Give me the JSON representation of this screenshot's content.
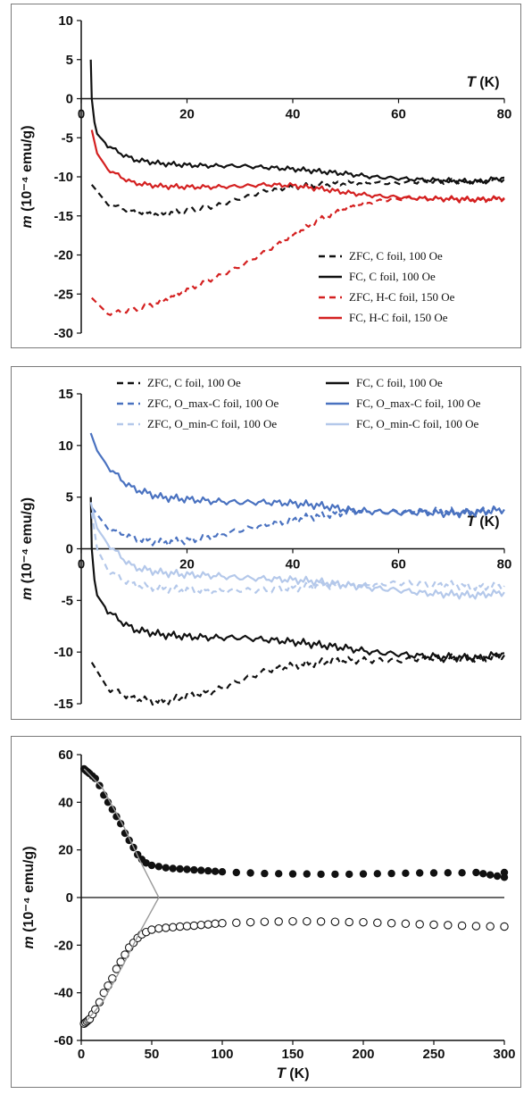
{
  "chart_data": [
    {
      "type": "line",
      "panel": "top",
      "xlabel_symbol": "T",
      "xlabel_unit": "(K)",
      "ylabel_symbol": "m",
      "ylabel_unit": "(10⁻⁴ emu/g)",
      "xlim": [
        0,
        80
      ],
      "ylim": [
        -30,
        10
      ],
      "xticks": [
        "0",
        "20",
        "40",
        "60",
        "80"
      ],
      "yticks": [
        "10",
        "5",
        "0",
        "-5",
        "-10",
        "-15",
        "-20",
        "-25",
        "-30"
      ],
      "grid": false,
      "legend": "lower-right",
      "series": [
        {
          "name": "ZFC, C foil, 100 Oe",
          "color": "#111111",
          "dash": true,
          "x": [
            2,
            5,
            10,
            15,
            20,
            25,
            30,
            35,
            40,
            45,
            50,
            55,
            60,
            65,
            70,
            75,
            80
          ],
          "y": [
            -11,
            -13.5,
            -14.5,
            -14.8,
            -14.3,
            -13.8,
            -12.8,
            -11.8,
            -11.3,
            -11,
            -10.8,
            -10.8,
            -10.8,
            -10.6,
            -10.6,
            -10.7,
            -10.3
          ]
        },
        {
          "name": "FC, C foil, 100 Oe",
          "color": "#111111",
          "dash": false,
          "x": [
            1.8,
            2,
            2.5,
            3,
            5,
            8,
            10,
            15,
            20,
            25,
            30,
            35,
            40,
            45,
            50,
            55,
            60,
            65,
            70,
            75,
            80
          ],
          "y": [
            5,
            0,
            -3,
            -4.5,
            -6,
            -7.2,
            -7.8,
            -8.3,
            -8.5,
            -8.6,
            -8.6,
            -8.8,
            -9,
            -9.3,
            -9.6,
            -10,
            -10.2,
            -10.4,
            -10.5,
            -10.6,
            -10.1
          ]
        },
        {
          "name": "ZFC, H-C foil, 150 Oe",
          "color": "#d42020",
          "dash": true,
          "x": [
            2,
            5,
            10,
            15,
            20,
            25,
            30,
            35,
            40,
            45,
            50,
            55,
            60,
            65,
            70,
            75,
            80
          ],
          "y": [
            -25.5,
            -27.5,
            -27,
            -26,
            -24.5,
            -23,
            -21.5,
            -19.5,
            -17.5,
            -15.5,
            -14,
            -13.2,
            -12.8,
            -12.7,
            -12.9,
            -13,
            -12.8
          ]
        },
        {
          "name": "FC, H-C foil, 150 Oe",
          "color": "#d42020",
          "dash": false,
          "x": [
            2,
            3,
            5,
            8,
            10,
            15,
            20,
            25,
            30,
            35,
            40,
            45,
            50,
            55,
            60,
            65,
            70,
            75,
            80
          ],
          "y": [
            -4,
            -7,
            -9,
            -10.2,
            -10.8,
            -11.2,
            -11.3,
            -11.3,
            -11.2,
            -11,
            -11.1,
            -11.5,
            -12,
            -12.4,
            -12.6,
            -12.8,
            -12.8,
            -12.9,
            -12.7
          ]
        }
      ]
    },
    {
      "type": "line",
      "panel": "middle",
      "xlabel_symbol": "T",
      "xlabel_unit": "(K)",
      "ylabel_symbol": "m",
      "ylabel_unit": "(10⁻⁴ emu/g)",
      "xlim": [
        0,
        80
      ],
      "ylim": [
        -15,
        15
      ],
      "xticks": [
        "0",
        "20",
        "40",
        "60",
        "80"
      ],
      "yticks": [
        "15",
        "10",
        "5",
        "0",
        "-5",
        "-10",
        "-15"
      ],
      "grid": false,
      "legend": "top",
      "series": [
        {
          "name": "ZFC, C foil, 100 Oe",
          "color": "#111111",
          "dash": true,
          "x": [
            2,
            5,
            10,
            15,
            20,
            25,
            30,
            35,
            40,
            45,
            50,
            55,
            60,
            65,
            70,
            75,
            80
          ],
          "y": [
            -11,
            -13.5,
            -14.5,
            -14.8,
            -14.3,
            -13.8,
            -12.8,
            -11.8,
            -11.3,
            -11,
            -10.8,
            -10.8,
            -10.8,
            -10.6,
            -10.6,
            -10.7,
            -10.3
          ]
        },
        {
          "name": "FC, C foil, 100 Oe",
          "color": "#111111",
          "dash": false,
          "x": [
            1.8,
            2,
            2.5,
            3,
            5,
            8,
            10,
            15,
            20,
            25,
            30,
            35,
            40,
            45,
            50,
            55,
            60,
            65,
            70,
            75,
            80
          ],
          "y": [
            5,
            0,
            -3,
            -4.5,
            -6,
            -7.2,
            -7.8,
            -8.3,
            -8.5,
            -8.6,
            -8.6,
            -8.8,
            -9,
            -9.3,
            -9.6,
            -10,
            -10.2,
            -10.4,
            -10.5,
            -10.6,
            -10.1
          ]
        },
        {
          "name": "ZFC, O_max-C foil, 100 Oe",
          "color": "#4a72c0",
          "dash": true,
          "x": [
            2,
            5,
            10,
            15,
            20,
            25,
            30,
            35,
            40,
            45,
            50,
            55,
            60,
            65,
            70,
            75,
            80
          ],
          "y": [
            4,
            2,
            1,
            0.6,
            0.8,
            1.2,
            1.8,
            2.3,
            2.8,
            3.2,
            3.5,
            3.6,
            3.6,
            3.7,
            3.6,
            3.7,
            3.8
          ]
        },
        {
          "name": "FC, O_max-C foil, 100 Oe",
          "color": "#4a72c0",
          "dash": false,
          "x": [
            1.8,
            3,
            5,
            8,
            10,
            15,
            20,
            25,
            30,
            35,
            40,
            45,
            50,
            55,
            60,
            65,
            70,
            75,
            80
          ],
          "y": [
            11.2,
            9.5,
            8,
            6.5,
            5.8,
            5,
            4.8,
            4.6,
            4.5,
            4.5,
            4.4,
            4.2,
            3.8,
            3.6,
            3.5,
            3.5,
            3.4,
            3.5,
            3.8
          ]
        },
        {
          "name": "ZFC, O_min-C foil, 100 Oe",
          "color": "#b4c8ea",
          "dash": true,
          "x": [
            2,
            3,
            5,
            8,
            10,
            15,
            20,
            25,
            30,
            35,
            40,
            45,
            50,
            55,
            60,
            65,
            70,
            75,
            80
          ],
          "y": [
            3.5,
            0,
            -2,
            -3,
            -3.5,
            -3.8,
            -4,
            -4.1,
            -4,
            -4,
            -3.8,
            -3.6,
            -3.5,
            -3.5,
            -3.3,
            -3.4,
            -3.5,
            -3.7,
            -3.6
          ]
        },
        {
          "name": "FC, O_min-C foil, 100 Oe",
          "color": "#b4c8ea",
          "dash": false,
          "x": [
            1.8,
            3,
            5,
            8,
            10,
            15,
            20,
            25,
            30,
            35,
            40,
            45,
            50,
            55,
            60,
            65,
            70,
            75,
            80
          ],
          "y": [
            4.5,
            2,
            0.5,
            -1,
            -1.8,
            -2.3,
            -2.5,
            -2.6,
            -2.8,
            -2.9,
            -3,
            -3.2,
            -3.5,
            -3.8,
            -4,
            -4.3,
            -4.4,
            -4.5,
            -4.2
          ]
        }
      ]
    },
    {
      "type": "scatter",
      "panel": "bottom",
      "xlabel_symbol": "T",
      "xlabel_unit": "(K)",
      "ylabel_symbol": "m",
      "ylabel_unit": "(10⁻⁴ emu/g)",
      "xlim": [
        0,
        300
      ],
      "ylim": [
        -60,
        60
      ],
      "xticks": [
        "0",
        "50",
        "100",
        "150",
        "200",
        "250",
        "300"
      ],
      "yticks": [
        "60",
        "40",
        "20",
        "0",
        "-20",
        "-40",
        "-60"
      ],
      "grid": false,
      "series": [
        {
          "name": "",
          "marker": "filled",
          "color": "#111111",
          "x": [
            2,
            3,
            4,
            5,
            6,
            8,
            10,
            13,
            16,
            19,
            22,
            25,
            28,
            31,
            34,
            37,
            40,
            43,
            46,
            50,
            55,
            60,
            65,
            70,
            75,
            80,
            85,
            90,
            95,
            100,
            110,
            120,
            130,
            140,
            150,
            160,
            170,
            180,
            190,
            200,
            210,
            220,
            230,
            240,
            250,
            260,
            270,
            280,
            285,
            290,
            295,
            300,
            300
          ],
          "y": [
            54,
            53.5,
            53,
            52.5,
            52,
            51,
            50,
            47,
            43,
            40,
            37,
            34,
            31,
            27,
            24,
            21,
            18,
            16,
            14.5,
            13.5,
            13,
            12.5,
            12.2,
            12,
            11.8,
            11.6,
            11.4,
            11.2,
            11,
            10.8,
            10.5,
            10.3,
            10.1,
            10,
            9.9,
            9.9,
            9.8,
            9.8,
            9.8,
            9.9,
            10,
            10.1,
            10.2,
            10.3,
            10.3,
            10.4,
            10.4,
            10.5,
            10,
            9.5,
            9,
            10.5,
            8.5
          ]
        },
        {
          "name": "",
          "marker": "open",
          "color": "#111111",
          "x": [
            2,
            3,
            4,
            5,
            6,
            8,
            10,
            13,
            16,
            19,
            22,
            25,
            28,
            31,
            34,
            37,
            40,
            43,
            46,
            50,
            55,
            60,
            65,
            70,
            75,
            80,
            85,
            90,
            95,
            100,
            110,
            120,
            130,
            140,
            150,
            160,
            170,
            180,
            190,
            200,
            210,
            220,
            230,
            240,
            250,
            260,
            270,
            280,
            290,
            300
          ],
          "y": [
            -53,
            -52.5,
            -52,
            -51.5,
            -51,
            -49,
            -47,
            -44,
            -40,
            -37,
            -34,
            -30,
            -27,
            -24,
            -21,
            -19,
            -17,
            -15.5,
            -14.5,
            -13.5,
            -13,
            -12.7,
            -12.5,
            -12.2,
            -12,
            -11.8,
            -11.5,
            -11.3,
            -11,
            -10.8,
            -10.6,
            -10.4,
            -10.2,
            -10.1,
            -10,
            -10,
            -10.1,
            -10.2,
            -10.3,
            -10.4,
            -10.6,
            -10.8,
            -11,
            -11.2,
            -11.4,
            -11.6,
            -11.8,
            -12,
            -12.1,
            -12.2
          ]
        },
        {
          "name": "",
          "marker": "line",
          "color": "#9a9a9a",
          "x": [
            2,
            15,
            30,
            42,
            55
          ],
          "y": [
            54,
            46,
            30,
            15,
            0
          ]
        },
        {
          "name": "",
          "marker": "line",
          "color": "#9a9a9a",
          "x": [
            2,
            15,
            30,
            42,
            55
          ],
          "y": [
            -53,
            -44,
            -28,
            -14,
            0
          ]
        }
      ]
    }
  ]
}
